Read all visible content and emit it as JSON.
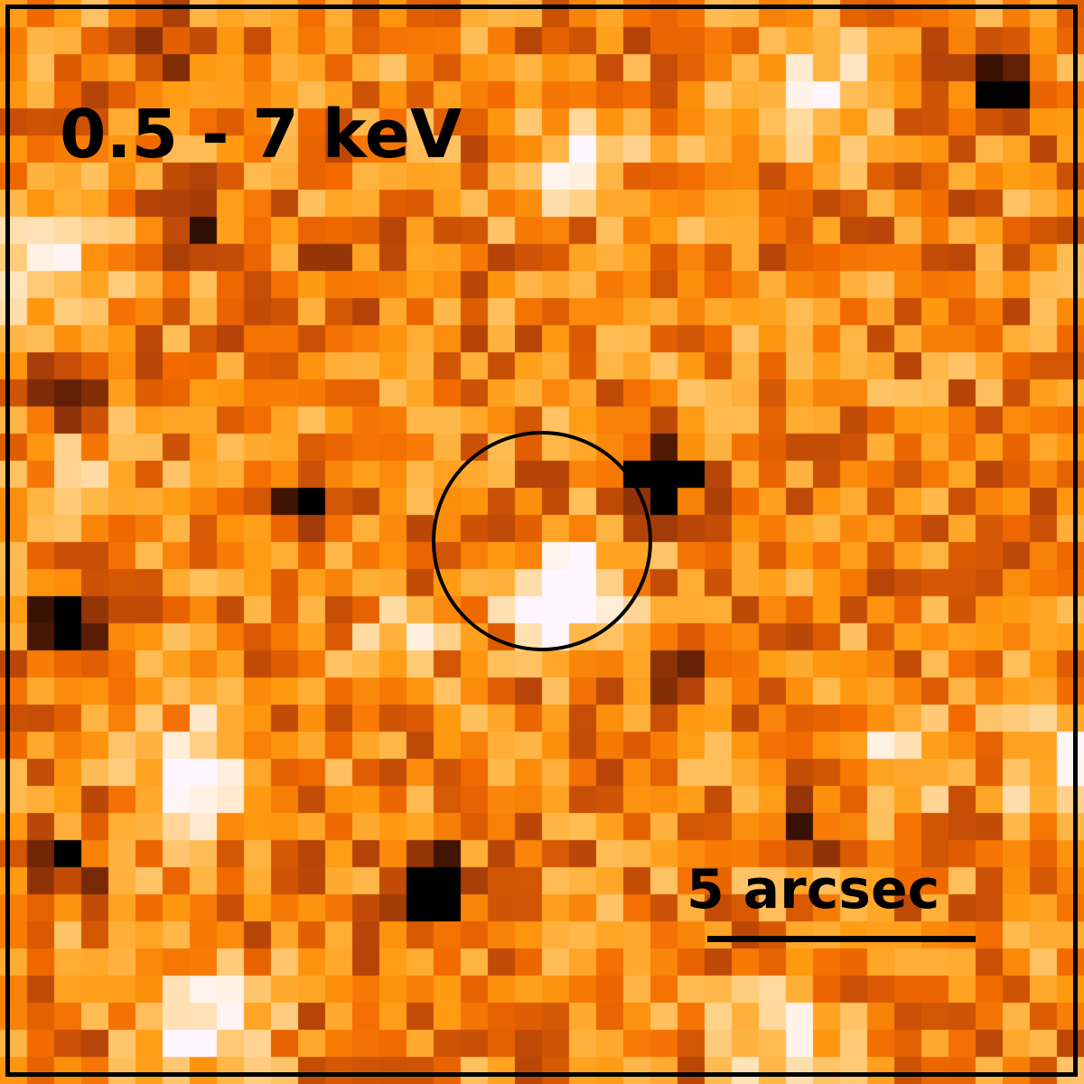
{
  "image": {
    "band_label": "0.5 - 7 keV",
    "scale_bar": {
      "label": "5 arcsec",
      "length_arcsec": 5
    },
    "aperture": "source-region-circle",
    "colormap": [
      "#000000",
      "#5a1c05",
      "#b64408",
      "#f26a00",
      "#ff9a10",
      "#ffb84a",
      "#ffd79a",
      "#fff2e6",
      "#fff6ff"
    ],
    "frame_color": "#000000"
  }
}
